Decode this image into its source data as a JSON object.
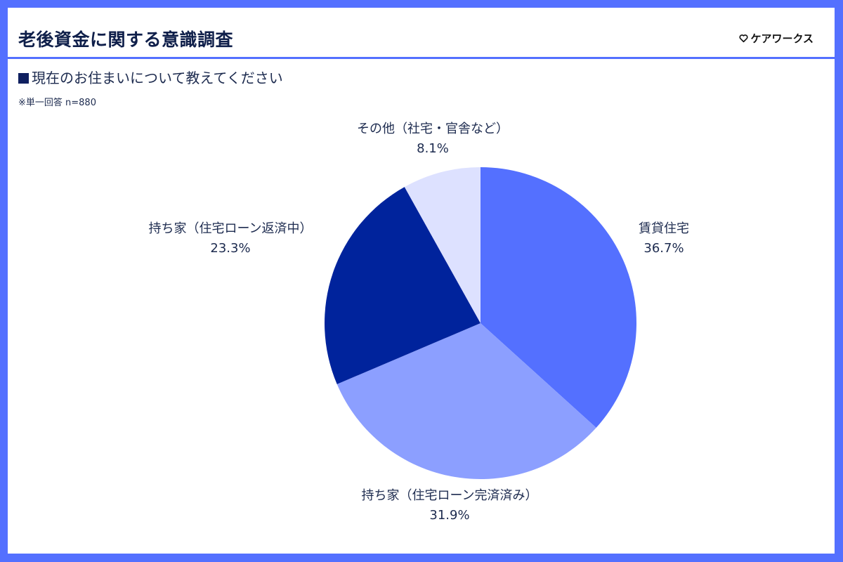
{
  "header": {
    "title": "老後資金に関する意識調査",
    "logo_icon": "heart-icon",
    "logo_text": "ケアワークス"
  },
  "question": {
    "text": "現在のお住まいについて教えてください",
    "note": "※単一回答 n=880"
  },
  "colors": {
    "frame": "#5470ff",
    "rental": "#5470ff",
    "owned_paid": "#8c9fff",
    "owned_loan": "#00239c",
    "other": "#dde1ff"
  },
  "chart_data": {
    "type": "pie",
    "title": "現在のお住まいについて教えてください",
    "subtitle": "※単一回答 n=880",
    "start_angle": "12 o'clock, clockwise",
    "categories": [
      "賃貸住宅",
      "持ち家（住宅ローン完済済み）",
      "持ち家（住宅ローン返済中）",
      "その他（社宅・官舎など）"
    ],
    "values": [
      36.7,
      31.9,
      23.3,
      8.1
    ],
    "value_labels": [
      "36.7%",
      "31.9%",
      "23.3%",
      "8.1%"
    ],
    "colors": [
      "#5470ff",
      "#8c9fff",
      "#00239c",
      "#dde1ff"
    ],
    "legend": "none (direct labels)"
  },
  "labels": [
    {
      "name": "賃貸住宅",
      "value": "36.7%"
    },
    {
      "name": "持ち家（住宅ローン完済済み）",
      "value": "31.9%"
    },
    {
      "name": "持ち家（住宅ローン返済中）",
      "value": "23.3%"
    },
    {
      "name": "その他（社宅・官舎など）",
      "value": "8.1%"
    }
  ]
}
